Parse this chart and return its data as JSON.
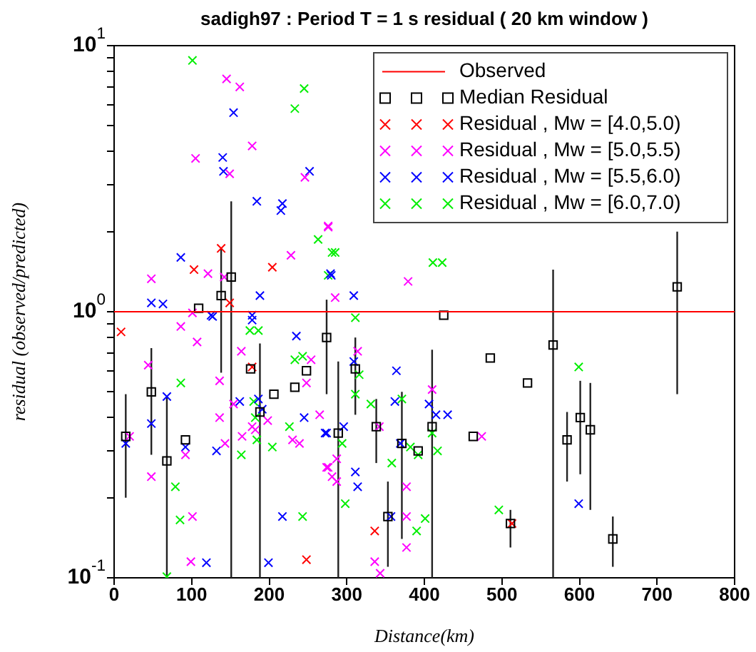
{
  "chart_data": {
    "type": "scatter",
    "title": "sadigh97 : Period T = 1 s residual ( 20 km window )",
    "xlabel": "Distance(km)",
    "ylabel": "residual (observed/predicted)",
    "xlim": [
      0,
      800
    ],
    "xticks": [
      0,
      100,
      200,
      300,
      400,
      500,
      600,
      700,
      800
    ],
    "ylim": [
      0.1,
      10
    ],
    "log": "y",
    "yticks": [
      {
        "value": 0.1,
        "label": "10$^{-1}$"
      },
      {
        "value": 0.2,
        "label": null
      },
      {
        "value": 0.3,
        "label": null
      },
      {
        "value": 0.4,
        "label": null
      },
      {
        "value": 0.5,
        "label": null
      },
      {
        "value": 0.6,
        "label": null
      },
      {
        "value": 0.7,
        "label": null
      },
      {
        "value": 0.8,
        "label": null
      },
      {
        "value": 0.9,
        "label": null
      },
      {
        "value": 1,
        "label": "10$^{0}$"
      },
      {
        "value": 2,
        "label": null
      },
      {
        "value": 3,
        "label": null
      },
      {
        "value": 4,
        "label": null
      },
      {
        "value": 5,
        "label": null
      },
      {
        "value": 6,
        "label": null
      },
      {
        "value": 7,
        "label": null
      },
      {
        "value": 8,
        "label": null
      },
      {
        "value": 9,
        "label": null
      },
      {
        "value": 10,
        "label": "10$^{1}$"
      }
    ],
    "grid": false,
    "legend": "top right",
    "series": [
      {
        "name": "Observed",
        "type": "line",
        "color": "#ff0000",
        "marker": "none",
        "x": [
          0,
          800
        ],
        "values": [
          1,
          1
        ]
      },
      {
        "name": "Median Residual",
        "color": "#000000",
        "marker": "square",
        "x": [
          15,
          48,
          68,
          92,
          109,
          138,
          151,
          176,
          188,
          206,
          233,
          248,
          274,
          289,
          311,
          338,
          353,
          371,
          392,
          410,
          425,
          463,
          485,
          511,
          533,
          566,
          584,
          601,
          614,
          643,
          726
        ],
        "values": [
          0.34,
          0.5,
          0.275,
          0.33,
          1.03,
          1.15,
          1.35,
          0.61,
          0.42,
          0.49,
          0.52,
          0.6,
          0.8,
          0.35,
          0.61,
          0.37,
          0.17,
          0.32,
          0.3,
          0.37,
          0.97,
          0.34,
          0.67,
          0.16,
          0.54,
          0.75,
          0.33,
          0.4,
          0.36,
          0.14,
          1.24
        ],
        "errors": [
          [
            0.2,
            0.49
          ],
          [
            0.29,
            0.73
          ],
          [
            0.1,
            0.48
          ],
          null,
          null,
          [
            0.59,
            1.73
          ],
          [
            0.1,
            2.6
          ],
          null,
          [
            0.1,
            0.76
          ],
          null,
          null,
          null,
          [
            0.49,
            1.11
          ],
          [
            0.1,
            0.65
          ],
          [
            0.41,
            0.8
          ],
          [
            0.27,
            0.47
          ],
          [
            0.11,
            0.23
          ],
          [
            0.14,
            0.5
          ],
          null,
          [
            0.1,
            0.72
          ],
          null,
          null,
          null,
          [
            0.13,
            0.18
          ],
          null,
          [
            0.1,
            1.44
          ],
          [
            0.23,
            0.42
          ],
          [
            0.245,
            0.55
          ],
          [
            0.18,
            0.54
          ],
          [
            0.11,
            0.17
          ],
          [
            0.49,
            2.0
          ]
        ]
      },
      {
        "name": "Residual , Mw = [4.0,5.0)",
        "color": "#ff0000",
        "marker": "cross",
        "x": [
          9,
          103,
          138,
          149,
          178,
          204,
          248,
          336,
          513
        ],
        "values": [
          0.84,
          1.44,
          1.73,
          1.08,
          0.62,
          1.47,
          0.117,
          0.15,
          0.16
        ]
      },
      {
        "name": "Residual , Mw = [5.0,5.5)",
        "color": "#ff00ff",
        "marker": "cross",
        "x": [
          145,
          162,
          178,
          105,
          149,
          246,
          276,
          228,
          121,
          48,
          142,
          101,
          44,
          86,
          107,
          20,
          48,
          136,
          136,
          143,
          164,
          154,
          165,
          178,
          182,
          198,
          92,
          101,
          99,
          230,
          239,
          248,
          254,
          265,
          274,
          281,
          276,
          285,
          379,
          314,
          342,
          276,
          287,
          287,
          377,
          377,
          377,
          410,
          474,
          336,
          343
        ],
        "values": [
          7.5,
          7.0,
          4.2,
          3.77,
          3.3,
          3.2,
          2.08,
          1.63,
          1.39,
          1.33,
          1.35,
          0.99,
          0.63,
          0.88,
          0.77,
          0.34,
          0.24,
          0.55,
          0.4,
          0.32,
          0.71,
          0.45,
          0.34,
          0.37,
          0.36,
          0.39,
          0.29,
          0.17,
          0.115,
          0.33,
          0.32,
          0.54,
          0.66,
          0.41,
          0.26,
          0.24,
          2.1,
          1.13,
          1.3,
          0.71,
          0.37,
          0.26,
          0.28,
          0.23,
          0.22,
          0.17,
          0.13,
          0.51,
          0.34,
          0.115,
          0.104
        ]
      },
      {
        "name": "Residual , Mw = [5.5,6.0)",
        "color": "#0000ff",
        "marker": "cross",
        "x": [
          154,
          140,
          141,
          252,
          184,
          217,
          215,
          86,
          188,
          48,
          63,
          125,
          178,
          178,
          280,
          127,
          235,
          68,
          48,
          15,
          92,
          132,
          162,
          186,
          191,
          245,
          274,
          217,
          119,
          199,
          279,
          309,
          309,
          364,
          362,
          406,
          415,
          430,
          272,
          296,
          311,
          314,
          369,
          357,
          599
        ],
        "values": [
          5.6,
          3.8,
          3.37,
          3.37,
          2.6,
          2.55,
          2.4,
          1.6,
          1.15,
          1.08,
          1.07,
          0.97,
          0.97,
          0.93,
          1.37,
          0.96,
          0.81,
          0.48,
          0.38,
          0.32,
          0.31,
          0.3,
          0.46,
          0.47,
          0.43,
          0.4,
          0.35,
          0.17,
          0.114,
          0.114,
          1.39,
          1.15,
          0.65,
          0.6,
          0.46,
          0.45,
          0.41,
          0.41,
          0.35,
          0.37,
          0.25,
          0.22,
          0.32,
          0.17,
          0.19
        ]
      },
      {
        "name": "Residual , Mw = [6.0,7.0)",
        "color": "#00ee00",
        "marker": "cross",
        "x": [
          101,
          245,
          233,
          263,
          276,
          281,
          175,
          186,
          86,
          180,
          182,
          184,
          164,
          204,
          226,
          233,
          243,
          79,
          85,
          243,
          68,
          285,
          411,
          423,
          311,
          316,
          311,
          331,
          294,
          298,
          358,
          382,
          392,
          401,
          390,
          371,
          410,
          417,
          496,
          599
        ],
        "values": [
          8.8,
          6.9,
          5.8,
          1.87,
          1.37,
          1.67,
          0.85,
          0.85,
          0.54,
          0.46,
          0.4,
          0.33,
          0.29,
          0.31,
          0.37,
          0.66,
          0.68,
          0.22,
          0.165,
          0.17,
          0.101,
          1.67,
          1.53,
          1.53,
          0.95,
          0.58,
          0.49,
          0.45,
          0.32,
          0.19,
          0.27,
          0.31,
          0.29,
          0.167,
          0.15,
          0.47,
          0.35,
          0.3,
          0.18,
          0.62
        ]
      }
    ]
  }
}
